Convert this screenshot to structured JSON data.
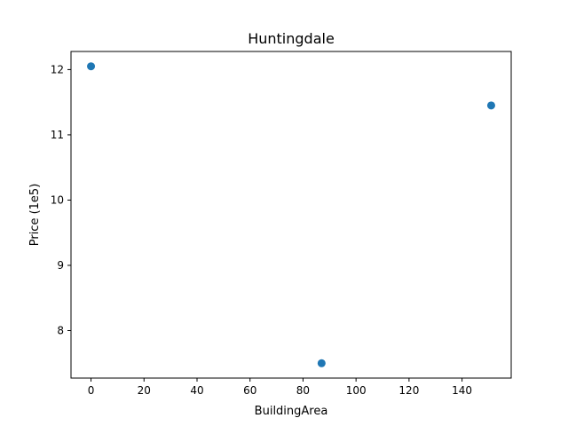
{
  "chart_data": {
    "type": "scatter",
    "title": "Huntingdale",
    "xlabel": "BuildingArea",
    "ylabel": "Price (1e5)",
    "x": [
      0,
      87,
      151
    ],
    "y": [
      12.05,
      7.5,
      11.45
    ],
    "xlim": [
      -7.55,
      158.55
    ],
    "ylim": [
      7.2725,
      12.2775
    ],
    "xticks": [
      0,
      20,
      40,
      60,
      80,
      100,
      120,
      140
    ],
    "yticks": [
      8,
      9,
      10,
      11,
      12
    ],
    "grid": false,
    "legend": "none",
    "point_color": "#1f77b4"
  }
}
